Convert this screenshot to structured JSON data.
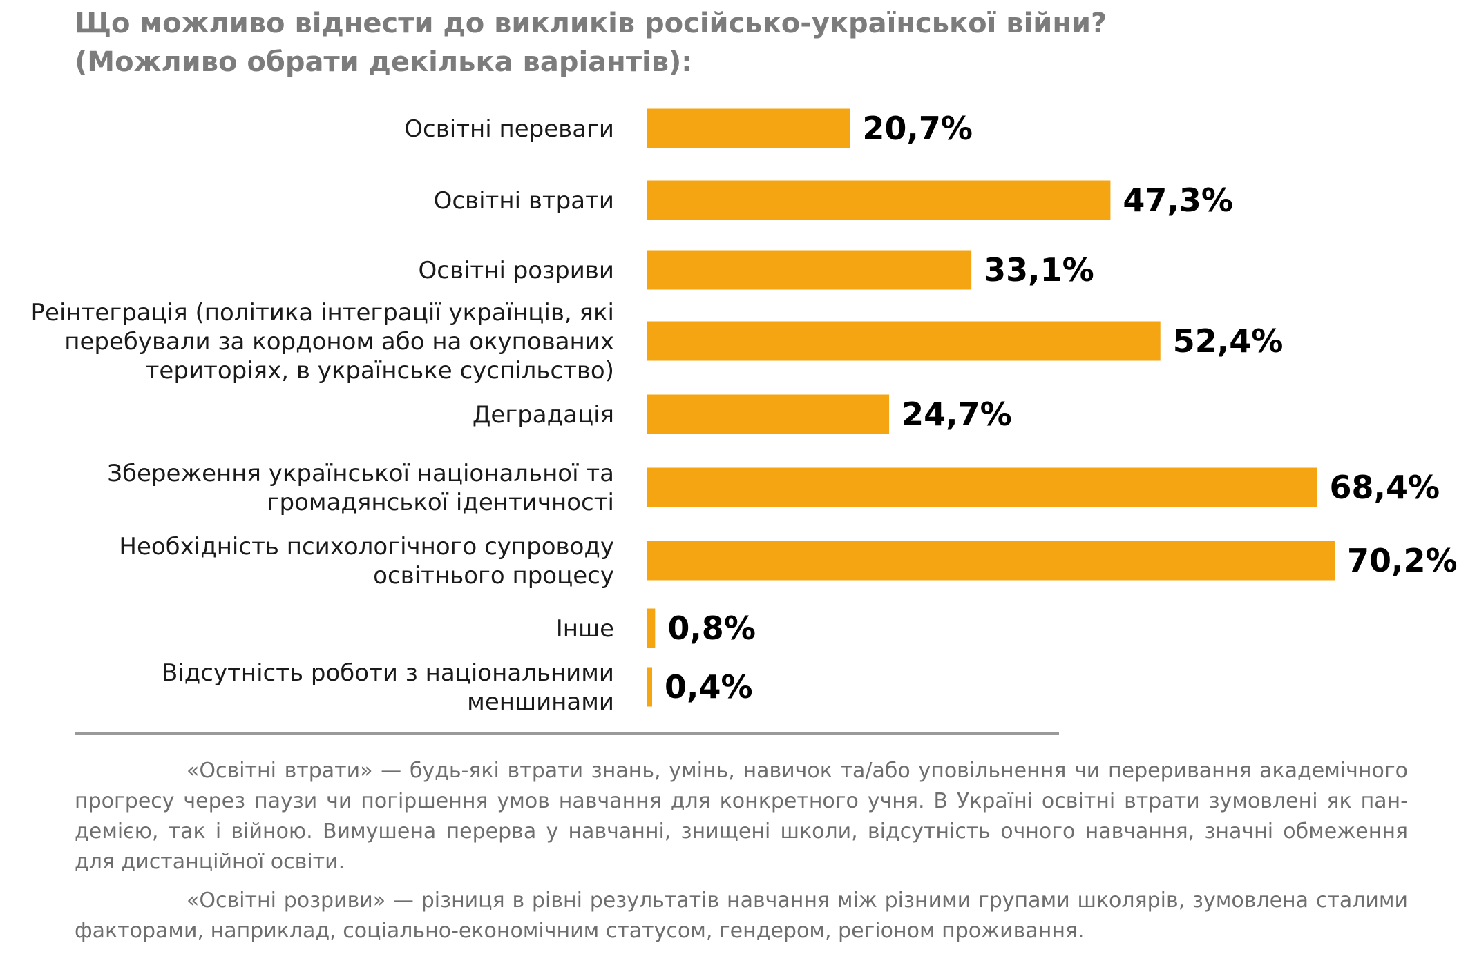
{
  "title": {
    "line1": "Що можливо віднести до викликів російсько-української війни?",
    "line2": "(Можливо обрати декілька варіантів):"
  },
  "chart_data": {
    "type": "bar",
    "orientation": "horizontal",
    "title": "Що можливо віднести до викликів російсько-української війни? (Можливо обрати декілька варіантів):",
    "xlabel": "",
    "ylabel": "",
    "xlim": [
      0,
      70.2
    ],
    "grid": false,
    "bar_color": "#F5A511",
    "categories": [
      [
        "Освітні переваги"
      ],
      [
        "Освітні втрати"
      ],
      [
        "Освітні розриви"
      ],
      [
        "Реінтеграція (політика інтеграції українців, які",
        "перебували за кордоном або на окупованих",
        "територіях, в українське суспільство)"
      ],
      [
        "Деградація"
      ],
      [
        "Збереження української національної та",
        "громадянської ідентичності"
      ],
      [
        "Необхідність психологічного супроводу",
        "освітнього процесу"
      ],
      [
        "Інше"
      ],
      [
        "Відсутність роботи з національними",
        "меншинами"
      ]
    ],
    "values": [
      20.7,
      47.3,
      33.1,
      52.4,
      24.7,
      68.4,
      70.2,
      0.8,
      0.4
    ],
    "value_labels": [
      "20,7%",
      "47,3%",
      "33,1%",
      "52,4%",
      "24,7%",
      "68,4%",
      "70,2%",
      "0,8%",
      "0,4%"
    ]
  },
  "notes": {
    "note1": "«Освітні втрати» — будь-які втрати знань, умінь, навичок та/або уповільнення чи переривання академічного прогресу через паузи чи погіршення умов навчання для конкретного учня. В Україні освітні втрати зумовлені як пан-демією, так і війною. Вимушена перерва у навчанні, знищені школи, відсутність очного навчання, значні обмеження для дистанційної освіти.",
    "note2": "«Освітні розриви» — різниця в рівні результатів навчання між різними групами школярів, зумовлена сталими факторами, наприклад, соціально-економічним статусом, гендером, регіоном проживання."
  }
}
